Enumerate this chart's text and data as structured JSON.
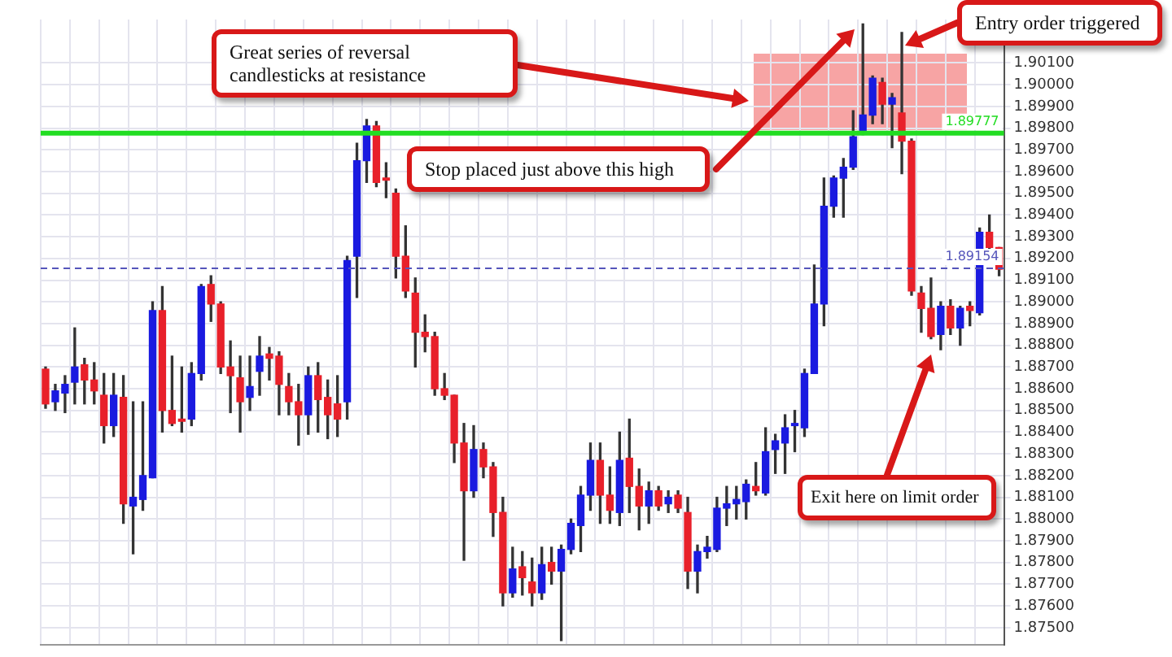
{
  "chart_data": {
    "type": "candlestick",
    "categories": [
      null,
      null,
      null,
      null,
      null,
      null,
      null,
      null,
      null,
      null,
      null,
      null,
      null,
      null,
      null,
      null,
      null,
      null,
      null,
      null,
      null,
      null,
      null,
      null,
      null,
      null,
      null,
      null,
      null,
      null,
      null,
      null,
      null,
      null,
      null,
      null,
      null,
      null,
      null,
      null,
      null,
      null,
      null,
      null,
      null,
      null,
      null,
      null,
      null,
      null,
      null,
      null,
      null,
      null,
      null,
      null,
      null,
      null,
      null,
      null,
      null,
      null,
      null,
      null,
      null,
      null,
      null,
      null,
      null,
      null,
      null,
      null,
      null,
      null,
      null,
      null,
      null,
      null,
      null,
      null,
      null,
      null,
      null,
      null,
      null,
      null,
      null,
      null,
      null,
      null,
      null,
      null,
      null,
      null,
      null,
      null,
      null,
      null,
      null
    ],
    "ohlc": [
      [
        1.8869,
        1.887,
        1.8851,
        1.8853
      ],
      [
        1.8854,
        1.8862,
        1.885,
        1.8859
      ],
      [
        1.8858,
        1.8866,
        1.8849,
        1.8862
      ],
      [
        1.8863,
        1.8888,
        1.8853,
        1.887
      ],
      [
        1.8871,
        1.8874,
        1.8853,
        1.8864
      ],
      [
        1.8864,
        1.8872,
        1.8853,
        1.8859
      ],
      [
        1.8857,
        1.8867,
        1.8835,
        1.8843
      ],
      [
        1.8843,
        1.8867,
        1.8838,
        1.8857
      ],
      [
        1.8856,
        1.8866,
        1.8798,
        1.8807
      ],
      [
        1.8806,
        1.8854,
        1.8784,
        1.881
      ],
      [
        1.8809,
        1.8854,
        1.8804,
        1.882
      ],
      [
        1.8819,
        1.89,
        1.8819,
        1.8896
      ],
      [
        1.8896,
        1.8907,
        1.884,
        1.885
      ],
      [
        1.885,
        1.8875,
        1.8843,
        1.8844
      ],
      [
        1.8846,
        1.887,
        1.884,
        1.8845
      ],
      [
        1.8846,
        1.8872,
        1.8843,
        1.8867
      ],
      [
        1.8867,
        1.8908,
        1.8864,
        1.8907
      ],
      [
        1.8908,
        1.8912,
        1.8891,
        1.8899
      ],
      [
        1.8899,
        1.89,
        1.8867,
        1.887
      ],
      [
        1.887,
        1.8882,
        1.8849,
        1.8866
      ],
      [
        1.8865,
        1.8875,
        1.884,
        1.8854
      ],
      [
        1.8856,
        1.8875,
        1.885,
        1.8861
      ],
      [
        1.8868,
        1.8884,
        1.8857,
        1.8875
      ],
      [
        1.8876,
        1.8879,
        1.8864,
        1.8874
      ],
      [
        1.8875,
        1.8877,
        1.8848,
        1.8862
      ],
      [
        1.8861,
        1.8867,
        1.8848,
        1.8854
      ],
      [
        1.8854,
        1.8862,
        1.8834,
        1.8848
      ],
      [
        1.8848,
        1.887,
        1.8839,
        1.8866
      ],
      [
        1.8866,
        1.8872,
        1.884,
        1.8855
      ],
      [
        1.8856,
        1.8864,
        1.8837,
        1.8848
      ],
      [
        1.8853,
        1.8866,
        1.8838,
        1.8846
      ],
      [
        1.8854,
        1.8921,
        1.8846,
        1.8919
      ],
      [
        1.8921,
        1.8973,
        1.8902,
        1.8965
      ],
      [
        1.8965,
        1.8984,
        1.8955,
        1.8981
      ],
      [
        1.8981,
        1.8983,
        1.8953,
        1.8955
      ],
      [
        1.8957,
        1.8964,
        1.8948,
        1.8956
      ],
      [
        1.895,
        1.8952,
        1.8911,
        1.8921
      ],
      [
        1.8921,
        1.8935,
        1.8902,
        1.8905
      ],
      [
        1.8904,
        1.8911,
        1.887,
        1.8886
      ],
      [
        1.8886,
        1.8894,
        1.8877,
        1.8884
      ],
      [
        1.8884,
        1.8886,
        1.8857,
        1.886
      ],
      [
        1.886,
        1.8867,
        1.8855,
        1.8857
      ],
      [
        1.8857,
        1.8857,
        1.8826,
        1.8835
      ],
      [
        1.8835,
        1.8844,
        1.8781,
        1.8813
      ],
      [
        1.8813,
        1.8843,
        1.881,
        1.8832
      ],
      [
        1.8832,
        1.8835,
        1.8819,
        1.8824
      ],
      [
        1.8824,
        1.8826,
        1.8792,
        1.8803
      ],
      [
        1.8803,
        1.881,
        1.876,
        1.8766
      ],
      [
        1.8766,
        1.8787,
        1.8764,
        1.8777
      ],
      [
        1.8778,
        1.8785,
        1.8765,
        1.8773
      ],
      [
        1.8771,
        1.8782,
        1.876,
        1.8766
      ],
      [
        1.8766,
        1.8787,
        1.8763,
        1.8779
      ],
      [
        1.878,
        1.8787,
        1.877,
        1.8776
      ],
      [
        1.8776,
        1.8788,
        1.8744,
        1.8786
      ],
      [
        1.8786,
        1.88,
        1.8784,
        1.8798
      ],
      [
        1.8797,
        1.8815,
        1.8785,
        1.8811
      ],
      [
        1.8811,
        1.8835,
        1.8804,
        1.8827
      ],
      [
        1.8827,
        1.8835,
        1.8798,
        1.8811
      ],
      [
        1.8811,
        1.8824,
        1.8798,
        1.8804
      ],
      [
        1.8803,
        1.884,
        1.8797,
        1.8827
      ],
      [
        1.8828,
        1.8846,
        1.8803,
        1.8815
      ],
      [
        1.8815,
        1.8823,
        1.8795,
        1.8806
      ],
      [
        1.8806,
        1.8817,
        1.8798,
        1.8813
      ],
      [
        1.8813,
        1.8815,
        1.8804,
        1.8806
      ],
      [
        1.8807,
        1.8813,
        1.8803,
        1.881
      ],
      [
        1.8811,
        1.8813,
        1.8803,
        1.8805
      ],
      [
        1.8803,
        1.881,
        1.8768,
        1.8776
      ],
      [
        1.8776,
        1.8788,
        1.8766,
        1.8785
      ],
      [
        1.8785,
        1.8792,
        1.8782,
        1.8787
      ],
      [
        1.8786,
        1.881,
        1.8785,
        1.8805
      ],
      [
        1.8805,
        1.8815,
        1.8797,
        1.8807
      ],
      [
        1.8807,
        1.8815,
        1.88,
        1.8809
      ],
      [
        1.8808,
        1.8818,
        1.88,
        1.8816
      ],
      [
        1.8815,
        1.8826,
        1.8811,
        1.8813
      ],
      [
        1.8812,
        1.8842,
        1.8811,
        1.8831
      ],
      [
        1.8832,
        1.8839,
        1.8821,
        1.8836
      ],
      [
        1.8835,
        1.8848,
        1.8821,
        1.8842
      ],
      [
        1.8843,
        1.885,
        1.8831,
        1.8844
      ],
      [
        1.8842,
        1.8869,
        1.8838,
        1.8867
      ],
      [
        1.8867,
        1.8917,
        1.8867,
        1.8899
      ],
      [
        1.8899,
        1.8957,
        1.8889,
        1.8944
      ],
      [
        1.8944,
        1.8958,
        1.8939,
        1.8957
      ],
      [
        1.8957,
        1.8966,
        1.8939,
        1.8962
      ],
      [
        1.8962,
        1.8988,
        1.8961,
        1.8976
      ],
      [
        1.8978,
        1.9028,
        1.8977,
        1.8986
      ],
      [
        1.8986,
        1.9004,
        1.8982,
        1.9003
      ],
      [
        1.9001,
        1.9003,
        1.8982,
        1.8991
      ],
      [
        1.8991,
        1.8996,
        1.8971,
        1.8994
      ],
      [
        1.8987,
        1.9024,
        1.8959,
        1.8974
      ],
      [
        1.8974,
        1.8975,
        1.8903,
        1.8905
      ],
      [
        1.8904,
        1.8907,
        1.8886,
        1.8897
      ],
      [
        1.8897,
        1.8911,
        1.8883,
        1.8884
      ],
      [
        1.8885,
        1.89,
        1.8878,
        1.8898
      ],
      [
        1.8898,
        1.8901,
        1.8885,
        1.8888
      ],
      [
        1.8888,
        1.8898,
        1.888,
        1.8897
      ],
      [
        1.8898,
        1.89,
        1.8889,
        1.8896
      ],
      [
        1.8895,
        1.8934,
        1.8894,
        1.8932
      ],
      [
        1.8932,
        1.894,
        1.8924,
        1.8925
      ],
      [
        1.8925,
        1.8925,
        1.8912,
        1.8915
      ]
    ],
    "colors": [
      "#e8202a",
      "#1a1ae0",
      "#1a1ae0",
      "#1a1ae0",
      "#e8202a",
      "#e8202a",
      "#e8202a",
      "#1a1ae0",
      "#e8202a",
      "#1a1ae0",
      "#1a1ae0",
      "#1a1ae0",
      "#e8202a",
      "#e8202a",
      "#e8202a",
      "#1a1ae0",
      "#1a1ae0",
      "#e8202a",
      "#e8202a",
      "#e8202a",
      "#e8202a",
      "#1a1ae0",
      "#1a1ae0",
      "#e8202a",
      "#e8202a",
      "#e8202a",
      "#e8202a",
      "#1a1ae0",
      "#e8202a",
      "#e8202a",
      "#e8202a",
      "#1a1ae0",
      "#1a1ae0",
      "#1a1ae0",
      "#e8202a",
      "#e8202a",
      "#e8202a",
      "#e8202a",
      "#e8202a",
      "#e8202a",
      "#e8202a",
      "#e8202a",
      "#e8202a",
      "#e8202a",
      "#1a1ae0",
      "#e8202a",
      "#e8202a",
      "#e8202a",
      "#1a1ae0",
      "#e8202a",
      "#e8202a",
      "#1a1ae0",
      "#e8202a",
      "#1a1ae0",
      "#1a1ae0",
      "#1a1ae0",
      "#1a1ae0",
      "#e8202a",
      "#e8202a",
      "#1a1ae0",
      "#e8202a",
      "#e8202a",
      "#1a1ae0",
      "#e8202a",
      "#1a1ae0",
      "#e8202a",
      "#e8202a",
      "#1a1ae0",
      "#1a1ae0",
      "#1a1ae0",
      "#1a1ae0",
      "#1a1ae0",
      "#1a1ae0",
      "#e8202a",
      "#1a1ae0",
      "#1a1ae0",
      "#1a1ae0",
      "#1a1ae0",
      "#1a1ae0",
      "#1a1ae0",
      "#1a1ae0",
      "#1a1ae0",
      "#1a1ae0",
      "#1a1ae0",
      "#1a1ae0",
      "#1a1ae0",
      "#e8202a",
      "#1a1ae0",
      "#e8202a",
      "#e8202a",
      "#e8202a",
      "#e8202a",
      "#1a1ae0",
      "#e8202a",
      "#1a1ae0",
      "#e8202a",
      "#1a1ae0",
      "#e8202a",
      "#e8202a"
    ],
    "ylim": [
      1.8742,
      1.903
    ],
    "yticks": [
      {
        "value": 1.875,
        "label": "1.87500"
      },
      {
        "value": 1.876,
        "label": "1.87600"
      },
      {
        "value": 1.877,
        "label": "1.87700"
      },
      {
        "value": 1.878,
        "label": "1.87800"
      },
      {
        "value": 1.879,
        "label": "1.87900"
      },
      {
        "value": 1.88,
        "label": "1.88000"
      },
      {
        "value": 1.881,
        "label": "1.88100"
      },
      {
        "value": 1.882,
        "label": "1.88200"
      },
      {
        "value": 1.883,
        "label": "1.88300"
      },
      {
        "value": 1.884,
        "label": "1.88400"
      },
      {
        "value": 1.885,
        "label": "1.88500"
      },
      {
        "value": 1.886,
        "label": "1.88600"
      },
      {
        "value": 1.887,
        "label": "1.88700"
      },
      {
        "value": 1.888,
        "label": "1.88800"
      },
      {
        "value": 1.889,
        "label": "1.88900"
      },
      {
        "value": 1.89,
        "label": "1.89000"
      },
      {
        "value": 1.891,
        "label": "1.89100"
      },
      {
        "value": 1.892,
        "label": "1.89200"
      },
      {
        "value": 1.893,
        "label": "1.89300"
      },
      {
        "value": 1.894,
        "label": "1.89400"
      },
      {
        "value": 1.895,
        "label": "1.89500"
      },
      {
        "value": 1.896,
        "label": "1.89600"
      },
      {
        "value": 1.897,
        "label": "1.89700"
      },
      {
        "value": 1.898,
        "label": "1.89800"
      },
      {
        "value": 1.899,
        "label": "1.89900"
      },
      {
        "value": 1.9,
        "label": "1.90000"
      },
      {
        "value": 1.901,
        "label": "1.90100"
      }
    ],
    "tick_labels": "y",
    "grid": true,
    "legend": false,
    "ref_lines": [
      {
        "axis": "y",
        "value": 1.89777,
        "label": "1.89777",
        "color": "#22dd22",
        "line_style": "solid"
      },
      {
        "axis": "y",
        "value": 1.89154,
        "label": "1.89154",
        "color": "#5555bb",
        "line_style": "dashed"
      }
    ],
    "annotations": [
      "Great series of reversal candlesticks at resistance",
      "Entry order triggered",
      "Stop placed just above this high",
      "Exit here on limit order"
    ]
  }
}
